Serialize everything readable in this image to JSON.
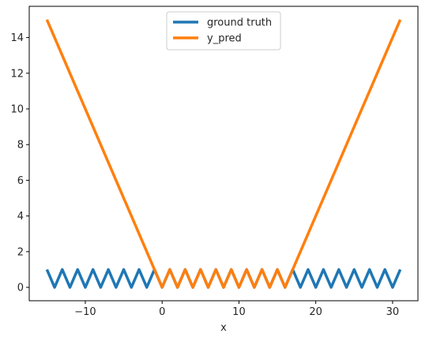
{
  "chart_data": {
    "type": "line",
    "title": "",
    "xlabel": "x",
    "ylabel": "",
    "xlim": [
      -17.3,
      33.3
    ],
    "ylim": [
      -0.75,
      15.75
    ],
    "xticks": [
      -10,
      0,
      10,
      20,
      30
    ],
    "xtick_labels": [
      "−10",
      "0",
      "10",
      "20",
      "30"
    ],
    "yticks": [
      0,
      2,
      4,
      6,
      8,
      10,
      12,
      14
    ],
    "ytick_labels": [
      "0",
      "2",
      "4",
      "6",
      "8",
      "10",
      "12",
      "14"
    ],
    "grid": false,
    "legend_position": "upper center",
    "series": [
      {
        "name": "ground truth",
        "color": "#1f77b4",
        "x": [
          -15,
          -14,
          -13,
          -12,
          -11,
          -10,
          -9,
          -8,
          -7,
          -6,
          -5,
          -4,
          -3,
          -2,
          -1,
          0,
          1,
          2,
          3,
          4,
          5,
          6,
          7,
          8,
          9,
          10,
          11,
          12,
          13,
          14,
          15,
          16,
          17,
          18,
          19,
          20,
          21,
          22,
          23,
          24,
          25,
          26,
          27,
          28,
          29,
          30,
          31
        ],
        "y": [
          1,
          0,
          1,
          0,
          1,
          0,
          1,
          0,
          1,
          0,
          1,
          0,
          1,
          0,
          1,
          0,
          1,
          0,
          1,
          0,
          1,
          0,
          1,
          0,
          1,
          0,
          1,
          0,
          1,
          0,
          1,
          0,
          1,
          0,
          1,
          0,
          1,
          0,
          1,
          0,
          1,
          0,
          1,
          0,
          1,
          0,
          1
        ]
      },
      {
        "name": "y_pred",
        "color": "#ff7f0e",
        "x": [
          -15,
          -14,
          -13,
          -12,
          -11,
          -10,
          -9,
          -8,
          -7,
          -6,
          -5,
          -4,
          -3,
          -2,
          -1,
          0,
          1,
          2,
          3,
          4,
          5,
          6,
          7,
          8,
          9,
          10,
          11,
          12,
          13,
          14,
          15,
          16,
          17,
          18,
          19,
          20,
          21,
          22,
          23,
          24,
          25,
          26,
          27,
          28,
          29,
          30,
          31
        ],
        "y": [
          15,
          14,
          13,
          12,
          11,
          10,
          9,
          8,
          7,
          6,
          5,
          4,
          3,
          2,
          1,
          0,
          1,
          0,
          1,
          0,
          1,
          0,
          1,
          0,
          1,
          0,
          1,
          0,
          1,
          0,
          1,
          0,
          1,
          2,
          3,
          4,
          5,
          6,
          7,
          8,
          9,
          10,
          11,
          12,
          13,
          14,
          15
        ]
      }
    ]
  }
}
